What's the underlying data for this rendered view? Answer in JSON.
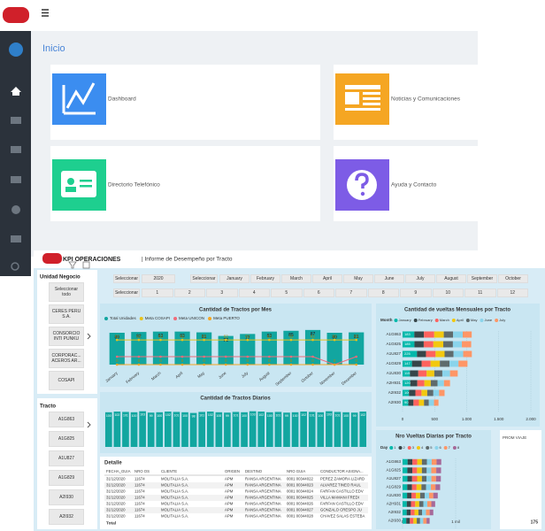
{
  "home": {
    "title": "Inicio",
    "cards": [
      {
        "label": "Dashboard"
      },
      {
        "label": "Noticias y Comunicaciones"
      },
      {
        "label": "Directorio Telefónico"
      },
      {
        "label": "Ayuda y Contacto"
      }
    ]
  },
  "report": {
    "title": "KPI OPERACIONES",
    "subtitle": "| Informe de Desempeño por Tracto",
    "unidad_negocio": {
      "title": "Unidad Negocio",
      "items": [
        "Seleccionar todo",
        "CERES PERU S.A.",
        "CONSORCIO INTI PUNKU",
        "CORPORAC... ACEROS AR...",
        "COSAPI"
      ]
    },
    "tracto": {
      "title": "Tracto",
      "items": [
        "A1G863",
        "A1G825",
        "A1U827",
        "A1G829",
        "A2I930",
        "A2I932"
      ]
    },
    "year_slicer": {
      "label": "Seleccionar",
      "items": [
        "2020"
      ]
    },
    "month_slicer": {
      "label": "Seleccionar",
      "items": [
        "January",
        "February",
        "March",
        "April",
        "May",
        "June",
        "July",
        "August",
        "September",
        "October"
      ]
    },
    "day_slicer": {
      "label": "Seleccionar",
      "items": [
        "1",
        "2",
        "3",
        "4",
        "5",
        "6",
        "7",
        "8",
        "9",
        "10",
        "11",
        "12"
      ]
    },
    "monthly": {
      "type": "bar",
      "title": "Cantidad de Tractos por Mes",
      "ylim": [
        0,
        100
      ],
      "categories": [
        "January",
        "February",
        "March",
        "April",
        "May",
        "June",
        "July",
        "August",
        "September",
        "October",
        "November",
        "December"
      ],
      "series": [
        {
          "name": "Total Unidades",
          "color": "#12a6a0",
          "values": [
            80,
            82,
            83,
            83,
            81,
            72,
            77,
            83,
            85,
            87,
            80,
            81
          ]
        },
        {
          "name": "Meta COSAPI",
          "color": "#e8c21a",
          "values": [
            62,
            62,
            62,
            62,
            62,
            62,
            62,
            62,
            62,
            62,
            62,
            62
          ]
        },
        {
          "name": "Meta UNICON",
          "color": "#f06c7a",
          "values": [
            20,
            20,
            20,
            20,
            20,
            20,
            20,
            20,
            20,
            20,
            0,
            20
          ]
        },
        {
          "name": "Meta PUERTO",
          "color": "#f5a623",
          "values": [
            0,
            0,
            0,
            0,
            0,
            0,
            0,
            0,
            0,
            0,
            0,
            0
          ]
        }
      ]
    },
    "daily": {
      "type": "bar",
      "title": "Cantidad de Tractos Diarios",
      "ylim": [
        0,
        120
      ],
      "color": "#12a6a0",
      "values": [
        100,
        102,
        101,
        100,
        103,
        99,
        100,
        102,
        101,
        100,
        98,
        101,
        102,
        100,
        99,
        101,
        100,
        103,
        102,
        100,
        101,
        99,
        100,
        102,
        101,
        100,
        103,
        101,
        100,
        99,
        102
      ]
    },
    "vueltas_mensuales": {
      "type": "stacked-bar-horizontal",
      "title": "Cantidad de vueltas Mensuales por Tracto",
      "legend_title": "Month",
      "categories": [
        "A1G863",
        "A1G825",
        "A1U827",
        "A1G829",
        "A1U830",
        "A2H931",
        "A2I932",
        "A2I930"
      ],
      "xlim": [
        0,
        2000
      ],
      "xticks": [
        0,
        500,
        {
          "value": 1000,
          "label": "1.000"
        },
        {
          "value": 1500,
          "label": "1.500"
        },
        {
          "value": 2000,
          "label": "2.000"
        }
      ],
      "series": [
        {
          "name": "January",
          "color": "#01b8aa",
          "values": [
            183,
            185,
            225,
            147,
            115,
            120,
            100,
            90
          ]
        },
        {
          "name": "February",
          "color": "#374649",
          "values": [
            150,
            145,
            140,
            150,
            130,
            110,
            100,
            80
          ]
        },
        {
          "name": "March",
          "color": "#fd625e",
          "values": [
            160,
            150,
            150,
            140,
            130,
            110,
            95,
            85
          ]
        },
        {
          "name": "April",
          "color": "#f2c80f",
          "values": [
            150,
            155,
            140,
            145,
            120,
            100,
            90,
            80
          ]
        },
        {
          "name": "May",
          "color": "#5f6b6d",
          "values": [
            145,
            150,
            140,
            150,
            125,
            105,
            95,
            75
          ]
        },
        {
          "name": "June",
          "color": "#8ad4eb",
          "values": [
            150,
            140,
            150,
            140,
            120,
            100,
            90,
            80
          ]
        },
        {
          "name": "July",
          "color": "#fe9666",
          "values": [
            140,
            145,
            135,
            140,
            120,
            95,
            85,
            70
          ]
        }
      ]
    },
    "vueltas_diarias": {
      "type": "stacked-bar-horizontal",
      "title": "Nro Vueltas Diarias por Tracto",
      "legend_title": "Day",
      "categories": [
        "A1G863",
        "A1G825",
        "A1U827",
        "A1G829",
        "A1U830",
        "A2H931",
        "A2I932",
        "A2I930"
      ],
      "xlim": [
        0,
        1500
      ],
      "xticks": [
        0,
        {
          "value": 1000,
          "label": "1 mil"
        }
      ],
      "series": [
        {
          "name": "1",
          "color": "#01b8aa",
          "values": [
            95,
            90,
            92,
            88,
            85,
            80,
            78,
            70
          ]
        },
        {
          "name": "2",
          "color": "#374649",
          "values": [
            90,
            95,
            88,
            90,
            82,
            78,
            75,
            68
          ]
        },
        {
          "name": "3",
          "color": "#fd625e",
          "values": [
            92,
            88,
            95,
            86,
            84,
            80,
            72,
            66
          ]
        },
        {
          "name": "4",
          "color": "#f2c80f",
          "values": [
            88,
            92,
            90,
            92,
            80,
            76,
            74,
            64
          ]
        },
        {
          "name": "5",
          "color": "#5f6b6d",
          "values": [
            94,
            90,
            86,
            88,
            86,
            78,
            70,
            62
          ]
        },
        {
          "name": "6",
          "color": "#8ad4eb",
          "values": [
            90,
            86,
            92,
            90,
            82,
            74,
            72,
            60
          ]
        },
        {
          "name": "7",
          "color": "#fe9666",
          "values": [
            92,
            94,
            88,
            86,
            80,
            76,
            70,
            62
          ]
        },
        {
          "name": "8",
          "color": "#a66999",
          "values": [
            88,
            90,
            90,
            88,
            84,
            72,
            68,
            58
          ]
        }
      ]
    },
    "detalle": {
      "title": "Detalle",
      "header": [
        "FECHA_GUIA",
        "NRO OS",
        "CLIENTE",
        "ORIGEN",
        "DESTINO",
        "NRO GUIA",
        "CONDUCTOR ASIGNA..."
      ],
      "rows": [
        [
          "31/12/2020",
          "11674",
          "MOLITALIA S.A.",
          "APM",
          "RANSA ARGENTINA",
          "0001 00344022",
          "PEREZ ZAMORA LIZARD"
        ],
        [
          "31/12/2020",
          "11674",
          "MOLITALIA S.A.",
          "APM",
          "RANSA ARGENTINA",
          "0001 00344023",
          "ALVAREZ TINEO RAUL"
        ],
        [
          "31/12/2020",
          "11674",
          "MOLITALIA S.A.",
          "APM",
          "RANSA ARGENTINA",
          "0001 00344024",
          "FARFAN CASTILLO EDV"
        ],
        [
          "31/12/2020",
          "11674",
          "MOLITALIA S.A.",
          "APM",
          "RANSA ARGENTINA",
          "0001 00344025",
          "VILLA MAMANI FREDI"
        ],
        [
          "31/12/2020",
          "11674",
          "MOLITALIA S.A.",
          "APM",
          "RANSA ARGENTINA",
          "0001 00344026",
          "FARFAN CASTILLO EDV"
        ],
        [
          "31/12/2020",
          "11674",
          "MOLITALIA S.A.",
          "APM",
          "RANSA ARGENTINA",
          "0001 00344027",
          "GONZALO CRESPO JU"
        ],
        [
          "31/12/2020",
          "11674",
          "MOLITALIA S.A.",
          "APM",
          "RANSA ARGENTINA",
          "0001 00344028",
          "CHAVEZ SALAS ESTEBA"
        ]
      ],
      "total": "Total"
    },
    "prom_table": {
      "header": "PROM VIAJE",
      "total": "175"
    }
  }
}
